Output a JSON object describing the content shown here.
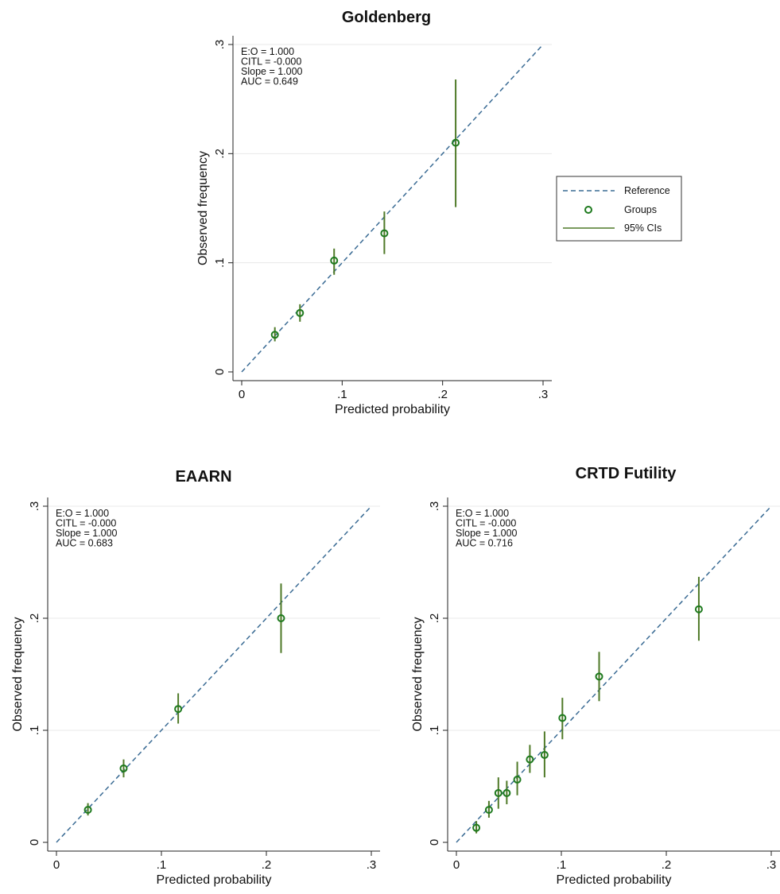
{
  "legend": {
    "entries": [
      {
        "label": "Reference",
        "kind": "dashed-line",
        "color": "#3a6b94"
      },
      {
        "label": "Groups",
        "kind": "hollow-circle",
        "color": "#1e7a1e"
      },
      {
        "label": "95% CIs",
        "kind": "line",
        "color": "#4f7a28"
      }
    ]
  },
  "colors": {
    "reference": "#3a6b94",
    "marker": "#1e7a1e",
    "ci": "#4f7a28",
    "grid": "#e8e8e8"
  },
  "chart_data": [
    {
      "type": "scatter",
      "title": "Goldenberg",
      "xlabel": "Predicted probability",
      "ylabel": "Observed frequency",
      "xlim": [
        0,
        0.3
      ],
      "ylim": [
        0,
        0.3
      ],
      "x_ticks": [
        0,
        0.1,
        0.2,
        0.3
      ],
      "x_tick_labels": [
        "0",
        ".1",
        ".2",
        ".3"
      ],
      "y_ticks": [
        0,
        0.1,
        0.2,
        0.3
      ],
      "y_tick_labels": [
        "0",
        ".1",
        ".2",
        ".3"
      ],
      "grid": true,
      "annotations": [
        "E:O = 1.000",
        "CITL = -0.000",
        "Slope = 1.000",
        "AUC = 0.649"
      ],
      "reference_line": {
        "from": [
          0,
          0
        ],
        "to": [
          0.3,
          0.3
        ]
      },
      "points": [
        {
          "x": 0.033,
          "y": 0.034,
          "ci_low": 0.028,
          "ci_high": 0.041
        },
        {
          "x": 0.058,
          "y": 0.054,
          "ci_low": 0.046,
          "ci_high": 0.062
        },
        {
          "x": 0.092,
          "y": 0.102,
          "ci_low": 0.089,
          "ci_high": 0.113
        },
        {
          "x": 0.142,
          "y": 0.127,
          "ci_low": 0.108,
          "ci_high": 0.147
        },
        {
          "x": 0.213,
          "y": 0.21,
          "ci_low": 0.151,
          "ci_high": 0.268
        }
      ]
    },
    {
      "type": "scatter",
      "title": "EAARN",
      "xlabel": "Predicted probability",
      "ylabel": "Observed frequency",
      "xlim": [
        0,
        0.3
      ],
      "ylim": [
        0,
        0.3
      ],
      "x_ticks": [
        0,
        0.1,
        0.2,
        0.3
      ],
      "x_tick_labels": [
        "0",
        ".1",
        ".2",
        ".3"
      ],
      "y_ticks": [
        0,
        0.1,
        0.2,
        0.3
      ],
      "y_tick_labels": [
        "0",
        ".1",
        ".2",
        ".3"
      ],
      "grid": true,
      "annotations": [
        "E:O = 1.000",
        "CITL = -0.000",
        "Slope = 1.000",
        "AUC = 0.683"
      ],
      "reference_line": {
        "from": [
          0,
          0
        ],
        "to": [
          0.3,
          0.3
        ]
      },
      "points": [
        {
          "x": 0.03,
          "y": 0.029,
          "ci_low": 0.024,
          "ci_high": 0.035
        },
        {
          "x": 0.064,
          "y": 0.066,
          "ci_low": 0.058,
          "ci_high": 0.074
        },
        {
          "x": 0.116,
          "y": 0.119,
          "ci_low": 0.106,
          "ci_high": 0.133
        },
        {
          "x": 0.214,
          "y": 0.2,
          "ci_low": 0.169,
          "ci_high": 0.231
        }
      ]
    },
    {
      "type": "scatter",
      "title": "CRTD Futility",
      "xlabel": "Predicted probability",
      "ylabel": "Observed frequency",
      "xlim": [
        0,
        0.3
      ],
      "ylim": [
        0,
        0.3
      ],
      "x_ticks": [
        0,
        0.1,
        0.2,
        0.3
      ],
      "x_tick_labels": [
        "0",
        ".1",
        ".2",
        ".3"
      ],
      "y_ticks": [
        0,
        0.1,
        0.2,
        0.3
      ],
      "y_tick_labels": [
        "0",
        ".1",
        ".2",
        ".3"
      ],
      "grid": true,
      "annotations": [
        "E:O = 1.000",
        "CITL = -0.000",
        "Slope = 1.000",
        "AUC = 0.716"
      ],
      "reference_line": {
        "from": [
          0,
          0
        ],
        "to": [
          0.3,
          0.3
        ]
      },
      "points": [
        {
          "x": 0.019,
          "y": 0.013,
          "ci_low": 0.008,
          "ci_high": 0.019
        },
        {
          "x": 0.031,
          "y": 0.029,
          "ci_low": 0.022,
          "ci_high": 0.037
        },
        {
          "x": 0.04,
          "y": 0.044,
          "ci_low": 0.03,
          "ci_high": 0.058
        },
        {
          "x": 0.048,
          "y": 0.044,
          "ci_low": 0.034,
          "ci_high": 0.055
        },
        {
          "x": 0.058,
          "y": 0.056,
          "ci_low": 0.042,
          "ci_high": 0.072
        },
        {
          "x": 0.07,
          "y": 0.074,
          "ci_low": 0.062,
          "ci_high": 0.087
        },
        {
          "x": 0.084,
          "y": 0.078,
          "ci_low": 0.058,
          "ci_high": 0.099
        },
        {
          "x": 0.101,
          "y": 0.111,
          "ci_low": 0.092,
          "ci_high": 0.129
        },
        {
          "x": 0.136,
          "y": 0.148,
          "ci_low": 0.126,
          "ci_high": 0.17
        },
        {
          "x": 0.231,
          "y": 0.208,
          "ci_low": 0.18,
          "ci_high": 0.237
        }
      ]
    }
  ]
}
